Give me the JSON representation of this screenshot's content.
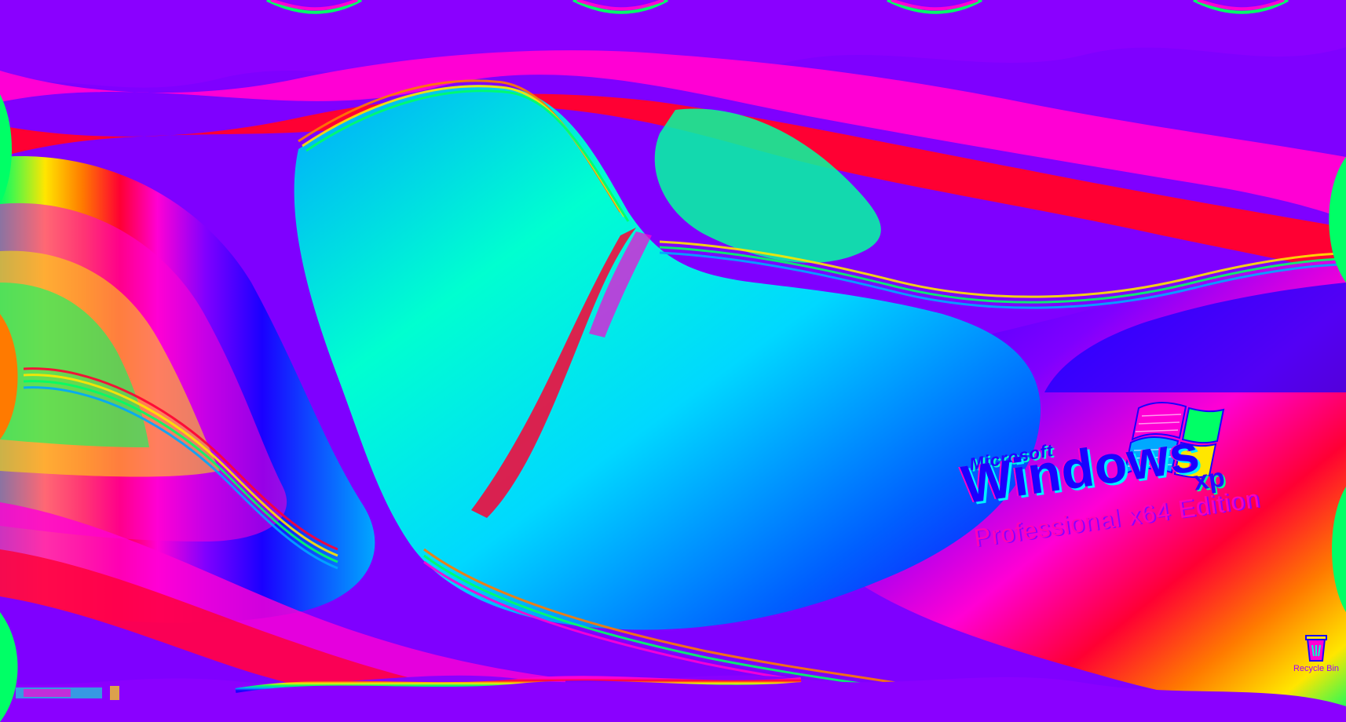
{
  "desktop": {
    "wallpaper_colors": [
      "#7f00ff",
      "#ff00d4",
      "#ff0033",
      "#ff7a00",
      "#ffe600",
      "#00ff66",
      "#00ffd0",
      "#00a8ff",
      "#1a00ff"
    ],
    "branding": {
      "microsoft": "Microsoft",
      "windows": "Windows",
      "xp": "xp",
      "edition": "Professional x64 Edition"
    },
    "icons": [
      {
        "label": "Recycle Bin",
        "icon": "recycle-bin-icon"
      }
    ]
  }
}
